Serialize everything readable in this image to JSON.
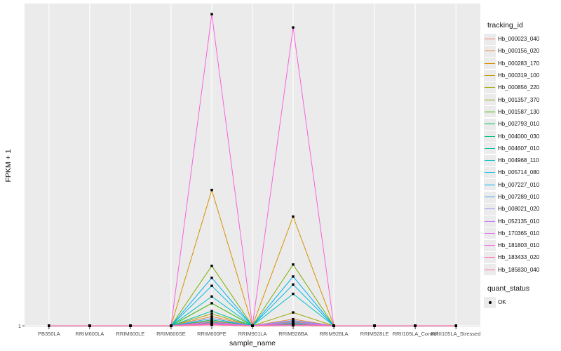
{
  "chart_data": {
    "type": "line",
    "title": "",
    "xlabel": "sample_name",
    "ylabel": "FPKM + 1",
    "y_ticks": [
      {
        "value": 1,
        "label": "1"
      }
    ],
    "ylim": [
      0.95,
      13.1
    ],
    "categories": [
      "PB350LA",
      "RRIM600LA",
      "RRIM600LE",
      "RRIM600SE",
      "RRIM600PE",
      "RRIM901LA",
      "RRIM928BA",
      "RRIM928LA",
      "RRIM928LE",
      "RRII105LA_Control",
      "RRII105LA_Stressed"
    ],
    "series": [
      {
        "name": "Hb_000023_040",
        "color": "#F8766D",
        "values": [
          1,
          1,
          1,
          1,
          1.07,
          1,
          1.06,
          1,
          1,
          1,
          1
        ]
      },
      {
        "name": "Hb_000156_020",
        "color": "#EA8331",
        "values": [
          1,
          1,
          1,
          1,
          1.35,
          1,
          1.25,
          1,
          1,
          1,
          1
        ]
      },
      {
        "name": "Hb_000283_170",
        "color": "#D89000",
        "values": [
          1,
          1,
          1,
          1,
          6.1,
          1,
          5.1,
          1,
          1,
          1,
          1
        ]
      },
      {
        "name": "Hb_000319_100",
        "color": "#C09B00",
        "values": [
          1,
          1,
          1,
          1,
          1.18,
          1,
          1.15,
          1,
          1,
          1,
          1
        ]
      },
      {
        "name": "Hb_000856_220",
        "color": "#A3A500",
        "values": [
          1,
          1,
          1,
          1,
          1.45,
          1,
          1.5,
          1,
          1,
          1,
          1
        ]
      },
      {
        "name": "Hb_001357_370",
        "color": "#7CAE00",
        "values": [
          1,
          1,
          1,
          1,
          3.25,
          1,
          3.3,
          1,
          1,
          1,
          1
        ]
      },
      {
        "name": "Hb_001587_130",
        "color": "#39B600",
        "values": [
          1,
          1,
          1,
          1,
          1.85,
          1,
          1.08,
          1,
          1,
          1,
          1
        ]
      },
      {
        "name": "Hb_002793_010",
        "color": "#00BB4E",
        "values": [
          1,
          1,
          1,
          1,
          1.12,
          1,
          1.04,
          1,
          1,
          1,
          1
        ]
      },
      {
        "name": "Hb_004000_030",
        "color": "#00BF7D",
        "values": [
          1,
          1,
          1,
          1,
          1.22,
          1,
          1.1,
          1,
          1,
          1,
          1
        ]
      },
      {
        "name": "Hb_004607_010",
        "color": "#00C1A3",
        "values": [
          1,
          1,
          1,
          1,
          1.55,
          1,
          1.03,
          1,
          1,
          1,
          1
        ]
      },
      {
        "name": "Hb_004968_110",
        "color": "#00BFC4",
        "values": [
          1,
          1,
          1,
          1,
          2.1,
          1,
          2.2,
          1,
          1,
          1,
          1
        ]
      },
      {
        "name": "Hb_005714_080",
        "color": "#00BAE0",
        "values": [
          1,
          1,
          1,
          1,
          2.5,
          1,
          2.55,
          1,
          1,
          1,
          1
        ]
      },
      {
        "name": "Hb_007227_010",
        "color": "#00B0F6",
        "values": [
          1,
          1,
          1,
          1,
          2.8,
          1,
          2.85,
          1,
          1,
          1,
          1
        ]
      },
      {
        "name": "Hb_007289_010",
        "color": "#35A2FF",
        "values": [
          1,
          1,
          1,
          1,
          1.28,
          1,
          1.2,
          1,
          1,
          1,
          1
        ]
      },
      {
        "name": "Hb_008021_020",
        "color": "#9590FF",
        "values": [
          1,
          1,
          1,
          1,
          1.1,
          1,
          1.13,
          1,
          1,
          1,
          1
        ]
      },
      {
        "name": "Hb_052135_010",
        "color": "#C77CFF",
        "values": [
          1,
          1,
          1,
          1,
          1.15,
          1,
          1.18,
          1,
          1,
          1,
          1
        ]
      },
      {
        "name": "Hb_170365_010",
        "color": "#E76BF3",
        "values": [
          1,
          1,
          1,
          1,
          1.05,
          1,
          1.02,
          1,
          1,
          1,
          1
        ]
      },
      {
        "name": "Hb_181803_010",
        "color": "#FA62DB",
        "values": [
          1,
          1,
          1,
          1,
          12.7,
          1,
          12.2,
          1,
          1,
          1,
          1
        ]
      },
      {
        "name": "Hb_183433_020",
        "color": "#FF62BC",
        "values": [
          1,
          1,
          1,
          1,
          1.09,
          1,
          1.07,
          1,
          1,
          1,
          1
        ]
      },
      {
        "name": "Hb_185830_040",
        "color": "#FF6C91",
        "values": [
          1,
          1,
          1,
          1,
          1.03,
          1,
          1.01,
          1,
          1,
          1,
          1
        ]
      }
    ],
    "legend": {
      "title": "tracking_id",
      "position": "right"
    },
    "shape_legend": {
      "title": "quant_status",
      "items": [
        "OK"
      ]
    },
    "grid": true
  }
}
